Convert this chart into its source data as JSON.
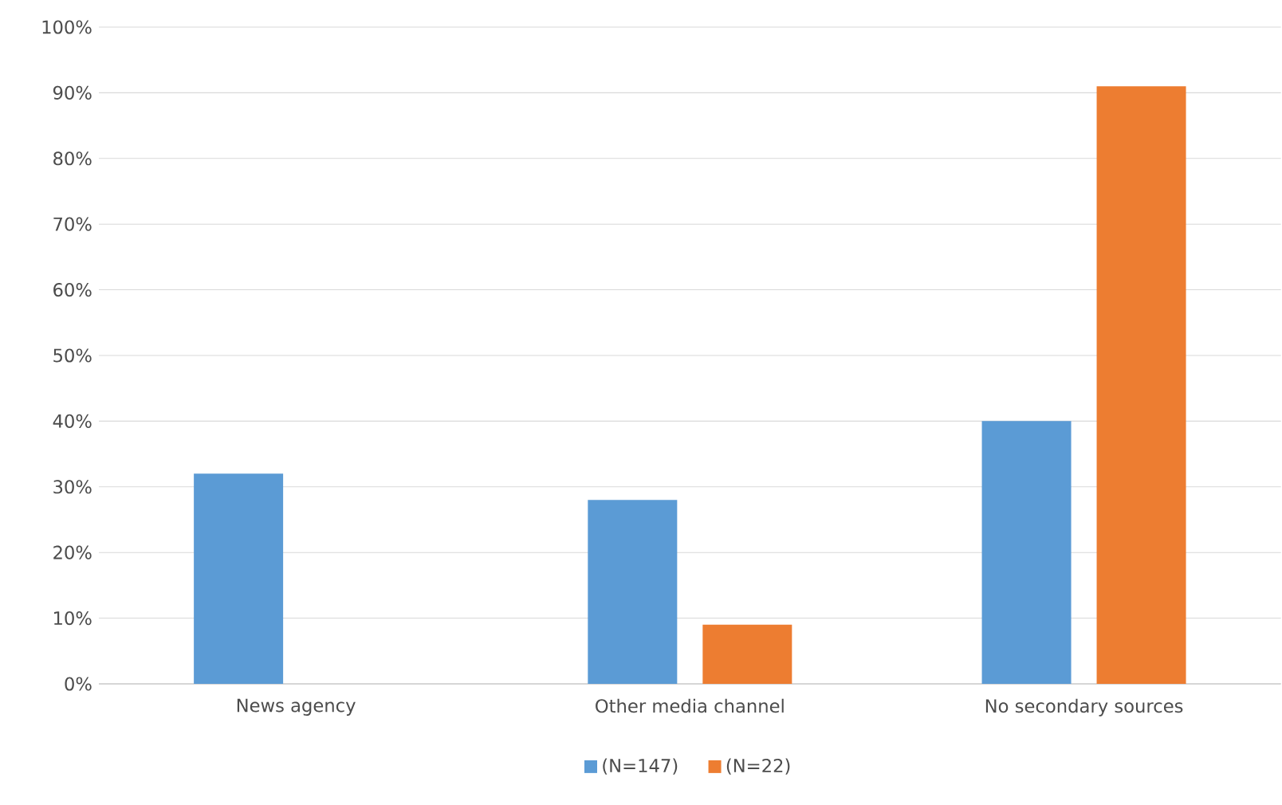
{
  "chart_data": {
    "type": "bar",
    "categories": [
      "News agency",
      "Other media channel",
      "No secondary sources"
    ],
    "series": [
      {
        "name": "(N=147)",
        "color": "#5b9bd5",
        "values": [
          32,
          28,
          40
        ]
      },
      {
        "name": "(N=22)",
        "color": "#ed7d31",
        "values": [
          0,
          9,
          91
        ]
      }
    ],
    "ylim": [
      0,
      100
    ],
    "yticks": [
      {
        "value": 0,
        "label": "0%"
      },
      {
        "value": 10,
        "label": "10%"
      },
      {
        "value": 20,
        "label": "20%"
      },
      {
        "value": 30,
        "label": "30%"
      },
      {
        "value": 40,
        "label": "40%"
      },
      {
        "value": 50,
        "label": "50%"
      },
      {
        "value": 60,
        "label": "60%"
      },
      {
        "value": 70,
        "label": "70%"
      },
      {
        "value": 80,
        "label": "80%"
      },
      {
        "value": 90,
        "label": "90%"
      },
      {
        "value": 100,
        "label": "100%"
      }
    ],
    "grid": "y",
    "legend": "bottom"
  }
}
